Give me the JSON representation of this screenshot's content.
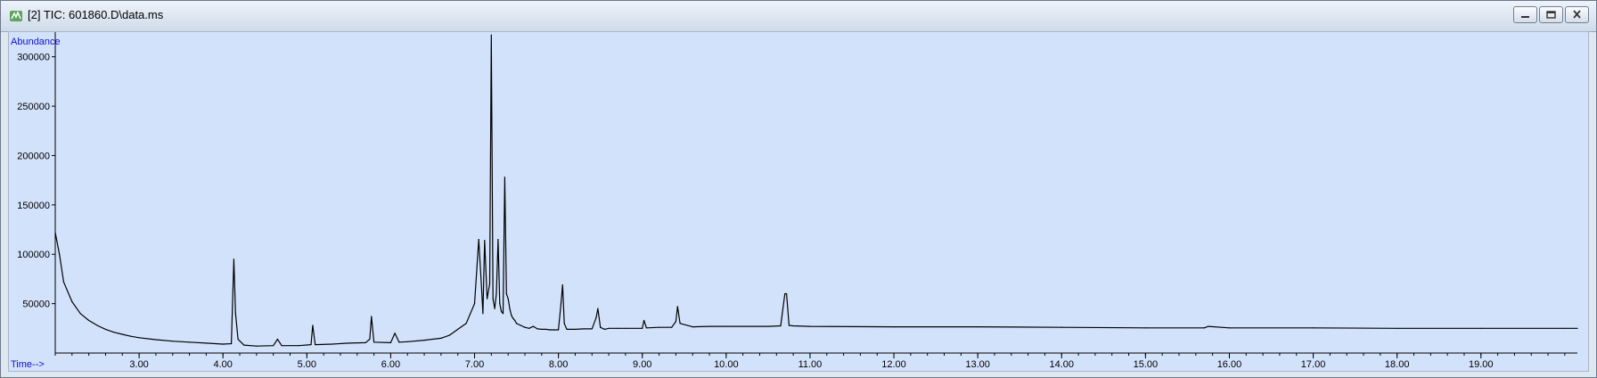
{
  "window": {
    "title": "[2] TIC: 601860.D\\data.ms",
    "buttons": [
      "minimize",
      "restore",
      "close"
    ]
  },
  "chart_data": {
    "type": "line",
    "ylabel": "Abundance",
    "xlabel": "Time-->",
    "xlim": [
      2.0,
      20.15
    ],
    "ylim": [
      0,
      325000
    ],
    "x_ticks": [
      3,
      4,
      5,
      6,
      7,
      8,
      9,
      10,
      11,
      12,
      13,
      14,
      15,
      16,
      17,
      18,
      19
    ],
    "x_tick_labels": [
      "3.00",
      "4.00",
      "5.00",
      "6.00",
      "7.00",
      "8.00",
      "9.00",
      "10.00",
      "11.00",
      "12.00",
      "13.00",
      "14.00",
      "15.00",
      "16.00",
      "17.00",
      "18.00",
      "19.00"
    ],
    "y_ticks": [
      50000,
      100000,
      150000,
      200000,
      250000,
      300000
    ],
    "y_tick_labels": [
      "50000",
      "100000",
      "150000",
      "200000",
      "250000",
      "300000"
    ],
    "series": [
      {
        "color": "#000000",
        "x": [
          2.0,
          2.05,
          2.1,
          2.2,
          2.3,
          2.4,
          2.5,
          2.6,
          2.7,
          2.8,
          2.9,
          3.0,
          3.2,
          3.4,
          3.6,
          3.8,
          4.0,
          4.1,
          4.13,
          4.15,
          4.18,
          4.25,
          4.4,
          4.6,
          4.65,
          4.7,
          4.9,
          5.05,
          5.07,
          5.1,
          5.3,
          5.5,
          5.7,
          5.75,
          5.77,
          5.8,
          6.0,
          6.05,
          6.1,
          6.2,
          6.4,
          6.6,
          6.7,
          6.8,
          6.9,
          6.95,
          7.0,
          7.05,
          7.08,
          7.1,
          7.12,
          7.15,
          7.18,
          7.2,
          7.22,
          7.24,
          7.26,
          7.28,
          7.3,
          7.32,
          7.34,
          7.36,
          7.38,
          7.4,
          7.42,
          7.44,
          7.46,
          7.48,
          7.5,
          7.55,
          7.6,
          7.65,
          7.7,
          7.75,
          7.8,
          7.85,
          7.9,
          7.95,
          8.0,
          8.03,
          8.05,
          8.07,
          8.1,
          8.2,
          8.3,
          8.4,
          8.45,
          8.47,
          8.5,
          8.55,
          8.6,
          8.7,
          8.8,
          9.0,
          9.02,
          9.05,
          9.2,
          9.35,
          9.4,
          9.42,
          9.45,
          9.6,
          9.8,
          10.0,
          10.5,
          10.65,
          10.7,
          10.72,
          10.75,
          10.8,
          11.0,
          12.0,
          13.0,
          14.0,
          15.0,
          15.7,
          15.75,
          16.0,
          17.0,
          18.0,
          19.0,
          20.0,
          20.15
        ],
        "y": [
          122000,
          100000,
          72000,
          52000,
          40000,
          33000,
          28000,
          24000,
          21000,
          19000,
          17000,
          15500,
          13500,
          12000,
          11000,
          10000,
          9000,
          9500,
          95000,
          40000,
          14000,
          8000,
          7000,
          7500,
          14000,
          7500,
          7500,
          8500,
          28000,
          8500,
          9000,
          10000,
          10500,
          14000,
          37000,
          11000,
          10500,
          20000,
          11000,
          11500,
          13000,
          15000,
          18000,
          24000,
          30000,
          40000,
          50000,
          115000,
          70000,
          40000,
          114000,
          55000,
          70000,
          322000,
          55000,
          45000,
          60000,
          115000,
          50000,
          42000,
          40000,
          178000,
          60000,
          55000,
          45000,
          38000,
          35000,
          33000,
          30000,
          28000,
          26000,
          25000,
          27000,
          24500,
          24000,
          24000,
          23500,
          23500,
          23500,
          50000,
          69000,
          30000,
          24000,
          24000,
          24500,
          24500,
          36000,
          45000,
          26000,
          24000,
          25000,
          25000,
          25000,
          25000,
          33000,
          25500,
          26000,
          26000,
          32000,
          47000,
          30000,
          26500,
          27000,
          27000,
          27000,
          27500,
          60000,
          60000,
          28000,
          27500,
          27000,
          26500,
          26500,
          26000,
          25500,
          25500,
          27000,
          25500,
          25500,
          25000,
          25000,
          25000,
          25000
        ]
      }
    ]
  }
}
